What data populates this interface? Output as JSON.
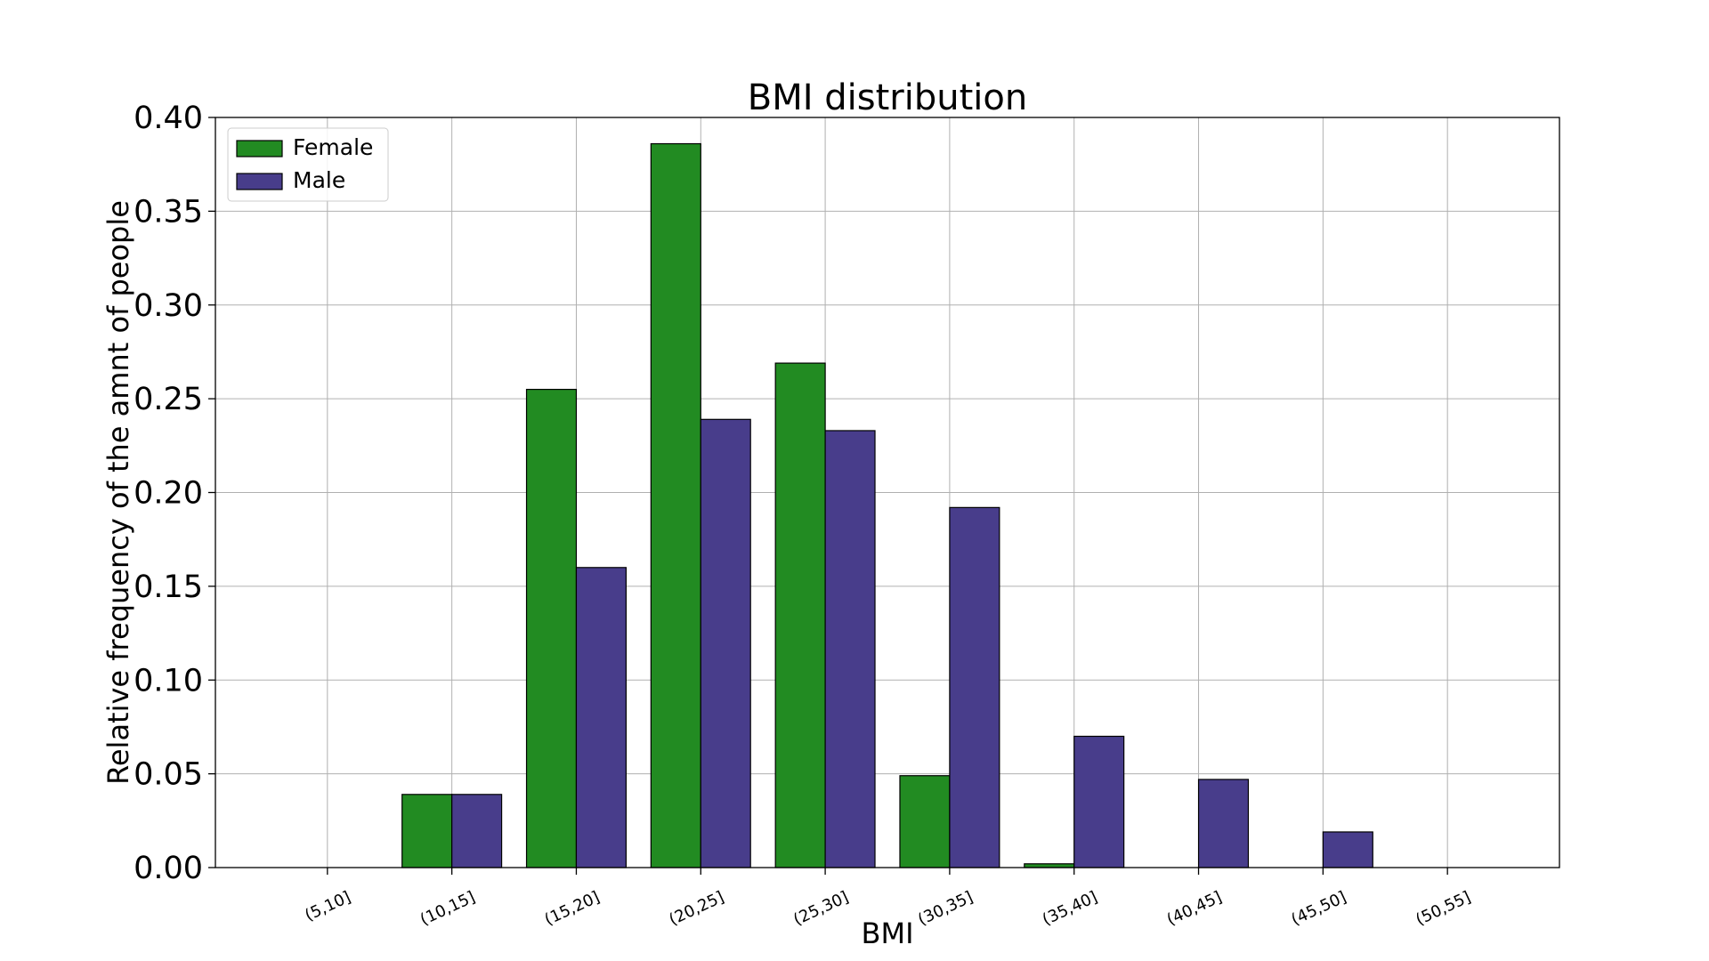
{
  "chart_data": {
    "type": "bar",
    "title": "BMI distribution",
    "xlabel": "BMI",
    "ylabel": "Relative frequency of the amnt of people",
    "categories": [
      "(5,10]",
      "(10,15]",
      "(15,20]",
      "(20,25]",
      "(25,30]",
      "(30,35]",
      "(35,40]",
      "(40,45]",
      "(45,50]",
      "(50,55]"
    ],
    "series": [
      {
        "name": "Female",
        "color": "#228b22",
        "values": [
          0.0,
          0.039,
          0.255,
          0.386,
          0.269,
          0.049,
          0.002,
          0.0,
          0.0,
          0.0
        ]
      },
      {
        "name": "Male",
        "color": "#483d8b",
        "values": [
          0.0,
          0.039,
          0.16,
          0.239,
          0.233,
          0.192,
          0.07,
          0.047,
          0.019,
          0.0
        ]
      }
    ],
    "ylim": [
      0,
      0.4
    ],
    "yticks": [
      "0.00",
      "0.05",
      "0.10",
      "0.15",
      "0.20",
      "0.25",
      "0.30",
      "0.35",
      "0.40"
    ],
    "grid": true,
    "legend_position": "top-left"
  }
}
